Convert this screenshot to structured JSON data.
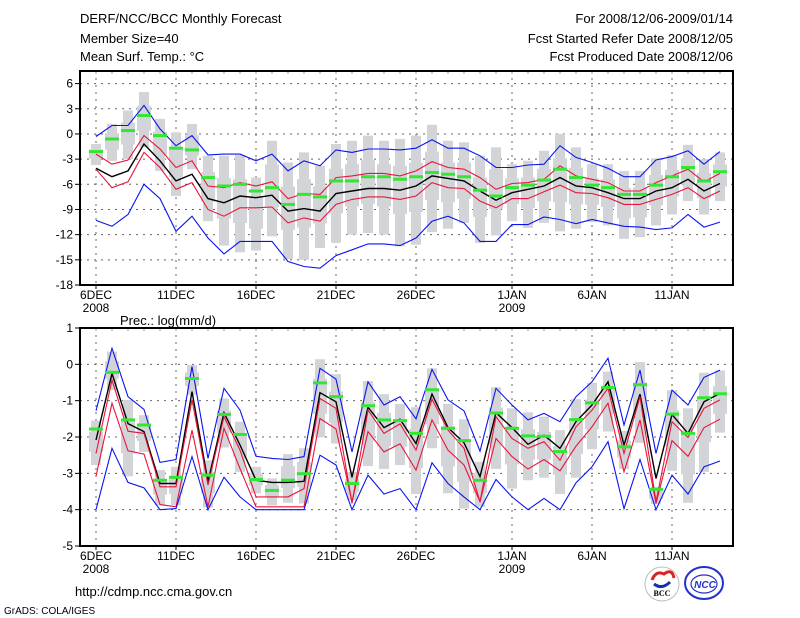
{
  "header": {
    "title": "DERF/NCC/BCC Monthly Forecast",
    "member_size": "Member Size=40",
    "variable": "Mean Surf. Temp.: °C",
    "for_range": "For 2008/12/06-2009/01/14",
    "started": "Fcst Started Refer Date 2008/12/05",
    "produced": "Fcst Produced Date 2008/12/06"
  },
  "footer": {
    "url": "http://cdmp.ncc.cma.gov.cn",
    "credit": "GrADS: COLA/IGES",
    "logo_bcc": "BCC",
    "logo_ncc": "NCC"
  },
  "colors": {
    "box": "#d3d4d8",
    "mean": "#33e633",
    "ensemble": "#000000",
    "inner_band": "#e8143c",
    "outer_band": "#0a14f0"
  },
  "chart_data": [
    {
      "type": "line",
      "title": "Mean Surf. Temp.: °C",
      "ylabel": "",
      "ylim": [
        -18,
        7.5
      ],
      "yticks": [
        6,
        3,
        0,
        -3,
        -6,
        -9,
        -12,
        -15,
        -18
      ],
      "xticks": [
        {
          "day": 0,
          "label": "6DEC",
          "year": "2008"
        },
        {
          "day": 5,
          "label": "11DEC"
        },
        {
          "day": 10,
          "label": "16DEC"
        },
        {
          "day": 15,
          "label": "21DEC"
        },
        {
          "day": 20,
          "label": "26DEC"
        },
        {
          "day": 26,
          "label": "1JAN",
          "year": "2009"
        },
        {
          "day": 31,
          "label": "6JAN"
        },
        {
          "day": 36,
          "label": "11JAN"
        }
      ],
      "range_max": [
        -1.2,
        1.2,
        2.8,
        5.0,
        1.8,
        0.2,
        1.2,
        -2.6,
        -2.6,
        -2.5,
        -5.2,
        -0.8,
        -3.4,
        -2.2,
        -3.8,
        -1.2,
        -0.8,
        -0.2,
        -0.8,
        -0.6,
        -0.2,
        1.1,
        -0.8,
        -1.0,
        -2.6,
        -1.6,
        -3.6,
        -3.2,
        -2.0,
        0.0,
        -1.6,
        -3.6,
        -3.6,
        -4.4,
        -4.4,
        -2.9,
        -2.5,
        -1.3,
        -3.0,
        -2.2
      ],
      "range_min": [
        -3.7,
        -3.2,
        -3.0,
        -1.6,
        -4.4,
        -7.4,
        -4.2,
        -10.4,
        -13.3,
        -14.1,
        -13.9,
        -12.2,
        -14.9,
        -15.0,
        -13.6,
        -13.0,
        -12.0,
        -11.8,
        -12.0,
        -13.4,
        -13.2,
        -11.7,
        -11.3,
        -10.6,
        -13.0,
        -12.1,
        -10.4,
        -11.2,
        -10.6,
        -11.6,
        -11.3,
        -10.5,
        -10.9,
        -12.5,
        -12.3,
        -10.9,
        -9.6,
        -8.0,
        -9.6,
        -8.0
      ],
      "series": [
        {
          "name": "member-mean",
          "values": [
            -2.1,
            -0.6,
            0.4,
            2.2,
            -0.2,
            -1.7,
            -1.9,
            -5.2,
            -6.2,
            -6.0,
            -6.8,
            -6.4,
            -8.4,
            -7.2,
            -7.5,
            -5.6,
            -5.6,
            -5.1,
            -5.1,
            -5.4,
            -5.1,
            -4.6,
            -4.8,
            -5.1,
            -6.7,
            -7.4,
            -6.4,
            -6.1,
            -5.5,
            -4.2,
            -5.2,
            -6.1,
            -6.4,
            -7.2,
            -7.2,
            -6.1,
            -5.1,
            -4.0,
            -5.6,
            -4.5
          ]
        },
        {
          "name": "ensemble",
          "values": [
            -4.1,
            -5.1,
            -4.4,
            -1.2,
            -3.2,
            -5.6,
            -4.8,
            -7.7,
            -8.2,
            -7.4,
            -7.6,
            -7.3,
            -9.2,
            -8.9,
            -9.2,
            -7.1,
            -6.8,
            -6.5,
            -6.5,
            -6.7,
            -6.2,
            -5.0,
            -5.3,
            -5.6,
            -6.8,
            -7.9,
            -7.0,
            -6.6,
            -6.2,
            -5.2,
            -6.2,
            -6.4,
            -7.0,
            -7.7,
            -7.7,
            -6.8,
            -6.4,
            -5.4,
            -6.8,
            -5.9
          ]
        },
        {
          "name": "inner-upper",
          "values": [
            -2.4,
            -3.6,
            -3.1,
            -0.2,
            -1.8,
            -4.0,
            -3.2,
            -6.2,
            -6.4,
            -5.8,
            -6.2,
            -5.7,
            -7.7,
            -7.1,
            -7.2,
            -5.2,
            -5.0,
            -4.7,
            -4.7,
            -5.0,
            -4.4,
            -3.3,
            -4.0,
            -4.2,
            -5.2,
            -6.6,
            -5.9,
            -5.8,
            -5.4,
            -3.8,
            -5.0,
            -5.4,
            -5.8,
            -6.8,
            -6.8,
            -5.8,
            -5.0,
            -4.2,
            -5.7,
            -4.7
          ]
        },
        {
          "name": "inner-lower",
          "values": [
            -4.2,
            -6.4,
            -5.7,
            -2.2,
            -4.0,
            -6.6,
            -5.8,
            -9.0,
            -9.8,
            -8.8,
            -8.8,
            -8.7,
            -10.6,
            -10.0,
            -10.4,
            -8.4,
            -7.8,
            -7.5,
            -7.5,
            -7.8,
            -7.4,
            -5.8,
            -6.4,
            -6.5,
            -8.0,
            -8.8,
            -7.7,
            -7.7,
            -6.9,
            -6.1,
            -7.0,
            -7.1,
            -7.6,
            -8.4,
            -8.4,
            -7.8,
            -7.2,
            -6.4,
            -7.7,
            -6.8
          ]
        },
        {
          "name": "outer-upper",
          "values": [
            -0.3,
            1.0,
            1.0,
            3.4,
            0.6,
            -1.4,
            -0.2,
            -2.5,
            -2.4,
            -2.4,
            -3.2,
            -2.4,
            -4.4,
            -3.2,
            -3.8,
            -1.9,
            -2.2,
            -1.8,
            -1.8,
            -1.9,
            -1.7,
            -0.7,
            -1.7,
            -1.7,
            -2.6,
            -4.0,
            -4.0,
            -3.7,
            -3.6,
            -1.4,
            -2.8,
            -3.4,
            -4.1,
            -5.1,
            -5.1,
            -3.1,
            -2.7,
            -2.0,
            -3.6,
            -2.1
          ]
        },
        {
          "name": "outer-lower",
          "values": [
            -10.3,
            -11.0,
            -9.6,
            -6.0,
            -7.7,
            -11.6,
            -9.8,
            -12.4,
            -14.3,
            -12.8,
            -12.8,
            -12.8,
            -15.2,
            -15.8,
            -16.0,
            -14.5,
            -13.8,
            -13.1,
            -13.1,
            -13.3,
            -12.4,
            -10.4,
            -9.8,
            -10.6,
            -12.8,
            -12.8,
            -10.8,
            -10.8,
            -9.9,
            -10.2,
            -10.7,
            -10.2,
            -10.6,
            -11.0,
            -11.1,
            -11.4,
            -11.2,
            -9.6,
            -11.1,
            -10.5
          ]
        }
      ]
    },
    {
      "type": "line",
      "title": "Prec.: log(mm/d)",
      "ylabel": "",
      "ylim": [
        -5,
        1
      ],
      "yticks": [
        1,
        0,
        -1,
        -2,
        -3,
        -4,
        -5
      ],
      "xticks": [
        {
          "day": 0,
          "label": "6DEC",
          "year": "2008"
        },
        {
          "day": 5,
          "label": "11DEC"
        },
        {
          "day": 10,
          "label": "16DEC"
        },
        {
          "day": 15,
          "label": "21DEC"
        },
        {
          "day": 20,
          "label": "26DEC"
        },
        {
          "day": 26,
          "label": "1JAN",
          "year": "2009"
        },
        {
          "day": 31,
          "label": "6JAN"
        },
        {
          "day": 36,
          "label": "11JAN"
        }
      ],
      "range_max": [
        -1.55,
        0.35,
        -0.98,
        -1.4,
        -2.91,
        -2.82,
        -0.02,
        -2.64,
        -0.94,
        -1.58,
        -2.82,
        -3.14,
        -2.47,
        -2.31,
        0.14,
        -0.27,
        -2.96,
        -0.46,
        -0.82,
        -1.09,
        -1.18,
        -0.11,
        -1.09,
        -1.51,
        -2.68,
        -0.63,
        -1.21,
        -1.32,
        -1.44,
        -1.81,
        -0.96,
        -0.51,
        -0.2,
        -1.83,
        0.06,
        -3.37,
        -0.71,
        -1.21,
        -0.23,
        -0.17
      ],
      "range_min": [
        -2.77,
        -0.71,
        -3.08,
        -2.41,
        -3.88,
        -3.88,
        -0.84,
        -3.94,
        -2.29,
        -2.96,
        -3.55,
        -3.88,
        -3.81,
        -3.83,
        -2.01,
        -2.18,
        -3.74,
        -2.8,
        -2.88,
        -2.77,
        -3.57,
        -2.31,
        -3.55,
        -3.97,
        -3.92,
        -2.88,
        -3.42,
        -3.19,
        -3.12,
        -3.57,
        -3.12,
        -2.34,
        -1.85,
        -2.88,
        -2.16,
        -3.85,
        -2.93,
        -3.81,
        -2.96,
        -1.88
      ],
      "series": [
        {
          "name": "member-mean",
          "values": [
            -1.78,
            -0.22,
            -1.53,
            -1.67,
            -3.19,
            -3.11,
            -0.39,
            -3.05,
            -1.38,
            -1.93,
            -3.17,
            -3.47,
            -3.19,
            -3.01,
            -0.51,
            -0.89,
            -3.28,
            -1.14,
            -1.53,
            -1.55,
            -1.9,
            -0.7,
            -1.76,
            -2.1,
            -3.19,
            -1.34,
            -1.76,
            -1.97,
            -1.98,
            -2.4,
            -1.52,
            -1.06,
            -0.64,
            -2.27,
            -0.56,
            -3.44,
            -1.37,
            -1.9,
            -0.92,
            -0.81
          ]
        },
        {
          "name": "ensemble",
          "values": [
            -2.08,
            -0.25,
            -1.63,
            -1.85,
            -3.28,
            -3.28,
            -0.75,
            -3.23,
            -1.33,
            -2.22,
            -3.19,
            -3.25,
            -3.25,
            -3.22,
            -0.78,
            -1.03,
            -3.11,
            -1.18,
            -1.74,
            -1.51,
            -2.18,
            -0.82,
            -1.74,
            -2.16,
            -3.09,
            -1.33,
            -1.74,
            -2.2,
            -1.95,
            -2.31,
            -1.58,
            -1.12,
            -0.48,
            -2.22,
            -0.82,
            -3.14,
            -1.38,
            -1.9,
            -1.03,
            -0.8
          ]
        },
        {
          "name": "inner-upper",
          "values": [
            -2.45,
            -0.43,
            -1.84,
            -1.9,
            -3.37,
            -3.37,
            -0.98,
            -3.32,
            -1.44,
            -2.36,
            -3.65,
            -3.65,
            -3.65,
            -3.42,
            -0.94,
            -1.21,
            -3.83,
            -1.26,
            -1.9,
            -1.64,
            -2.36,
            -0.96,
            -1.81,
            -2.31,
            -3.78,
            -1.44,
            -2.04,
            -2.31,
            -2.13,
            -2.64,
            -1.72,
            -1.26,
            -0.66,
            -2.45,
            -0.89,
            -3.78,
            -1.58,
            -2.01,
            -1.21,
            -0.98
          ]
        },
        {
          "name": "inner-lower",
          "values": [
            -3.08,
            -1.07,
            -2.38,
            -2.47,
            -3.86,
            -3.92,
            -1.81,
            -3.92,
            -1.76,
            -2.87,
            -3.92,
            -3.92,
            -3.92,
            -3.92,
            -1.49,
            -1.78,
            -3.78,
            -1.85,
            -2.41,
            -2.19,
            -2.91,
            -1.53,
            -2.36,
            -2.77,
            -3.78,
            -2.04,
            -2.54,
            -2.88,
            -2.62,
            -2.93,
            -2.25,
            -1.72,
            -1.07,
            -2.96,
            -1.53,
            -3.83,
            -2.1,
            -2.53,
            -1.74,
            -1.51
          ]
        },
        {
          "name": "outer-upper",
          "values": [
            -1.28,
            0.44,
            -0.89,
            -1.24,
            -2.7,
            -2.62,
            -0.06,
            -2.59,
            -0.66,
            -1.26,
            -2.53,
            -2.59,
            -2.62,
            -2.54,
            -0.11,
            -0.41,
            -2.41,
            -0.48,
            -1.12,
            -0.89,
            -1.5,
            -0.14,
            -0.98,
            -1.28,
            -2.39,
            -0.66,
            -1.12,
            -1.53,
            -1.35,
            -1.58,
            -0.89,
            -0.48,
            0.17,
            -1.67,
            -0.16,
            -2.45,
            -0.71,
            -1.12,
            -0.36,
            -0.16
          ]
        },
        {
          "name": "outer-lower",
          "values": [
            -4.0,
            -2.31,
            -3.25,
            -3.4,
            -4.0,
            -3.97,
            -2.54,
            -4.0,
            -3.11,
            -3.65,
            -4.0,
            -4.0,
            -4.0,
            -4.0,
            -2.5,
            -2.77,
            -4.0,
            -3.05,
            -3.57,
            -3.42,
            -4.0,
            -2.71,
            -3.28,
            -3.65,
            -4.0,
            -3.17,
            -3.65,
            -4.0,
            -3.69,
            -4.0,
            -3.26,
            -2.82,
            -2.13,
            -3.97,
            -2.62,
            -4.0,
            -3.05,
            -3.57,
            -2.82,
            -2.66
          ]
        }
      ]
    }
  ]
}
